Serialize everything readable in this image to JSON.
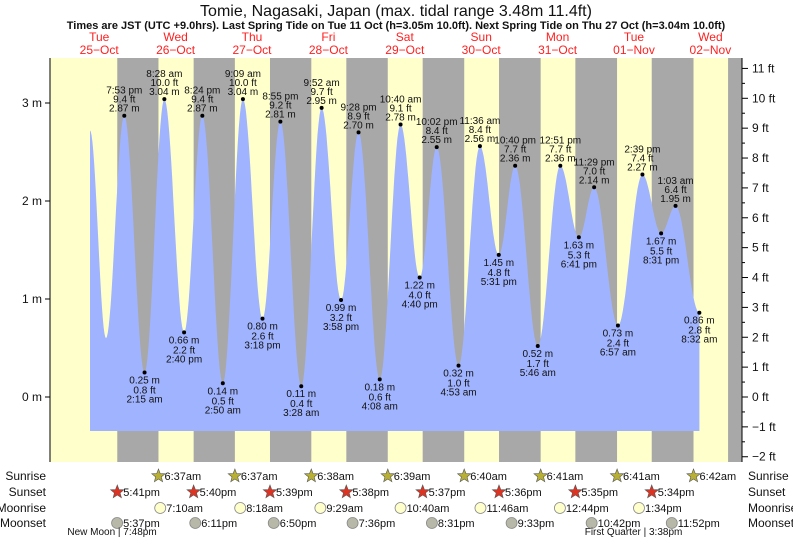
{
  "chart_data": {
    "type": "area",
    "title": "Tomie, Nagasaki, Japan (max. tidal range 3.48m 11.4ft)",
    "subtitle": "Times are JST (UTC +9.0hrs). Last Spring Tide on Tue 11 Oct (h=3.05m 10.0ft). Next Spring Tide on Thu 27 Oct (h=3.04m 10.0ft)",
    "days": [
      {
        "dow": "Tue",
        "date": "25−Oct"
      },
      {
        "dow": "Wed",
        "date": "26−Oct"
      },
      {
        "dow": "Thu",
        "date": "27−Oct"
      },
      {
        "dow": "Fri",
        "date": "28−Oct"
      },
      {
        "dow": "Sat",
        "date": "29−Oct"
      },
      {
        "dow": "Sun",
        "date": "30−Oct"
      },
      {
        "dow": "Mon",
        "date": "31−Oct"
      },
      {
        "dow": "Tue",
        "date": "01−Nov"
      },
      {
        "dow": "Wed",
        "date": "02−Nov"
      }
    ],
    "y_left": {
      "unit": "m",
      "ticks": [
        {
          "v": 3,
          "label": "3 m"
        },
        {
          "v": 2,
          "label": "2 m"
        },
        {
          "v": 1,
          "label": "1 m"
        },
        {
          "v": 0,
          "label": "0 m"
        }
      ]
    },
    "y_right": {
      "unit": "ft",
      "ticks": [
        {
          "v": 11,
          "label": "11 ft"
        },
        {
          "v": 10,
          "label": "10 ft"
        },
        {
          "v": 9,
          "label": "9 ft"
        },
        {
          "v": 8,
          "label": "8 ft"
        },
        {
          "v": 7,
          "label": "7 ft"
        },
        {
          "v": 6,
          "label": "6 ft"
        },
        {
          "v": 5,
          "label": "5 ft"
        },
        {
          "v": 4,
          "label": "4 ft"
        },
        {
          "v": 3,
          "label": "3 ft"
        },
        {
          "v": 2,
          "label": "2 ft"
        },
        {
          "v": 1,
          "label": "1 ft"
        },
        {
          "v": 0,
          "label": "0 ft"
        },
        {
          "v": -1,
          "label": "−1 ft"
        },
        {
          "v": -2,
          "label": "−2 ft"
        }
      ]
    },
    "series_start": {
      "day": 0,
      "hour": 9.1,
      "m": 2.72
    },
    "extremes": [
      {
        "day": 0,
        "hour": 14.13,
        "type": "low",
        "m": 0.6,
        "labeled": false
      },
      {
        "day": 0,
        "hour": 19.88,
        "type": "high",
        "time": "7:53 pm",
        "m": "2.87 m",
        "ft": "9.4 ft",
        "h": 2.87
      },
      {
        "day": 1,
        "hour": 2.25,
        "type": "low",
        "time": "2:15 am",
        "m": "0.25 m",
        "ft": "0.8 ft",
        "h": 0.25
      },
      {
        "day": 1,
        "hour": 8.47,
        "type": "high",
        "time": "8:28 am",
        "m": "3.04 m",
        "ft": "10.0 ft",
        "h": 3.04
      },
      {
        "day": 1,
        "hour": 14.67,
        "type": "low",
        "time": "2:40 pm",
        "m": "0.66 m",
        "ft": "2.2 ft",
        "h": 0.66
      },
      {
        "day": 1,
        "hour": 20.4,
        "type": "high",
        "time": "8:24 pm",
        "m": "2.87 m",
        "ft": "9.4 ft",
        "h": 2.87
      },
      {
        "day": 2,
        "hour": 2.83,
        "type": "low",
        "time": "2:50 am",
        "m": "0.14 m",
        "ft": "0.5 ft",
        "h": 0.14
      },
      {
        "day": 2,
        "hour": 9.15,
        "type": "high",
        "time": "9:09 am",
        "m": "3.04 m",
        "ft": "10.0 ft",
        "h": 3.04
      },
      {
        "day": 2,
        "hour": 15.3,
        "type": "low",
        "time": "3:18 pm",
        "m": "0.80 m",
        "ft": "2.6 ft",
        "h": 0.8
      },
      {
        "day": 2,
        "hour": 20.92,
        "type": "high",
        "time": "8:55 pm",
        "m": "2.81 m",
        "ft": "9.2 ft",
        "h": 2.81
      },
      {
        "day": 3,
        "hour": 3.47,
        "type": "low",
        "time": "3:28 am",
        "m": "0.11 m",
        "ft": "0.4 ft",
        "h": 0.11
      },
      {
        "day": 3,
        "hour": 9.87,
        "type": "high",
        "time": "9:52 am",
        "m": "2.95 m",
        "ft": "9.7 ft",
        "h": 2.95
      },
      {
        "day": 3,
        "hour": 15.97,
        "type": "low",
        "time": "3:58 pm",
        "m": "0.99 m",
        "ft": "3.2 ft",
        "h": 0.99
      },
      {
        "day": 3,
        "hour": 21.47,
        "type": "high",
        "time": "9:28 pm",
        "m": "2.70 m",
        "ft": "8.9 ft",
        "h": 2.7
      },
      {
        "day": 4,
        "hour": 4.13,
        "type": "low",
        "time": "4:08 am",
        "m": "0.18 m",
        "ft": "0.6 ft",
        "h": 0.18
      },
      {
        "day": 4,
        "hour": 10.67,
        "type": "high",
        "time": "10:40 am",
        "m": "2.78 m",
        "ft": "9.1 ft",
        "h": 2.78
      },
      {
        "day": 4,
        "hour": 16.67,
        "type": "low",
        "time": "4:40 pm",
        "m": "1.22 m",
        "ft": "4.0 ft",
        "h": 1.22
      },
      {
        "day": 4,
        "hour": 22.03,
        "type": "high",
        "time": "10:02 pm",
        "m": "2.55 m",
        "ft": "8.4 ft",
        "h": 2.55
      },
      {
        "day": 5,
        "hour": 4.88,
        "type": "low",
        "time": "4:53 am",
        "m": "0.32 m",
        "ft": "1.0 ft",
        "h": 0.32
      },
      {
        "day": 5,
        "hour": 11.6,
        "type": "high",
        "time": "11:36 am",
        "m": "2.56 m",
        "ft": "8.4 ft",
        "h": 2.56
      },
      {
        "day": 5,
        "hour": 17.52,
        "type": "low",
        "time": "5:31 pm",
        "m": "1.45 m",
        "ft": "4.8 ft",
        "h": 1.45
      },
      {
        "day": 5,
        "hour": 22.67,
        "type": "high",
        "time": "10:40 pm",
        "m": "2.36 m",
        "ft": "7.7 ft",
        "h": 2.36
      },
      {
        "day": 6,
        "hour": 5.77,
        "type": "low",
        "time": "5:46 am",
        "m": "0.52 m",
        "ft": "1.7 ft",
        "h": 0.52
      },
      {
        "day": 6,
        "hour": 12.85,
        "type": "high",
        "time": "12:51 pm",
        "m": "2.36 m",
        "ft": "7.7 ft",
        "h": 2.36
      },
      {
        "day": 6,
        "hour": 18.68,
        "type": "low",
        "time": "6:41 pm",
        "m": "1.63 m",
        "ft": "5.3 ft",
        "h": 1.63
      },
      {
        "day": 6,
        "hour": 23.48,
        "type": "high",
        "time": "11:29 pm",
        "m": "2.14 m",
        "ft": "7.0 ft",
        "h": 2.14
      },
      {
        "day": 7,
        "hour": 6.95,
        "type": "low",
        "time": "6:57 am",
        "m": "0.73 m",
        "ft": "2.4 ft",
        "h": 0.73
      },
      {
        "day": 7,
        "hour": 14.65,
        "type": "high",
        "time": "2:39 pm",
        "m": "2.27 m",
        "ft": "7.4 ft",
        "h": 2.27
      },
      {
        "day": 7,
        "hour": 20.52,
        "type": "low",
        "time": "8:31 pm",
        "m": "1.67 m",
        "ft": "5.5 ft",
        "h": 1.67
      },
      {
        "day": 8,
        "hour": 1.05,
        "type": "high",
        "time": "1:03 am",
        "m": "1.95 m",
        "ft": "6.4 ft",
        "h": 1.95
      },
      {
        "day": 8,
        "hour": 8.53,
        "type": "low",
        "time": "8:32 am",
        "m": "0.86 m",
        "ft": "2.8 ft",
        "h": 0.86
      }
    ],
    "rows": {
      "sunrise": {
        "label": "Sunrise",
        "events": [
          {
            "day": 1,
            "hour": 6.62,
            "text": "6:37am"
          },
          {
            "day": 2,
            "hour": 6.62,
            "text": "6:37am"
          },
          {
            "day": 3,
            "hour": 6.63,
            "text": "6:38am"
          },
          {
            "day": 4,
            "hour": 6.65,
            "text": "6:39am"
          },
          {
            "day": 5,
            "hour": 6.67,
            "text": "6:40am"
          },
          {
            "day": 6,
            "hour": 6.68,
            "text": "6:41am"
          },
          {
            "day": 7,
            "hour": 6.68,
            "text": "6:41am"
          },
          {
            "day": 8,
            "hour": 6.7,
            "text": "6:42am"
          }
        ]
      },
      "sunset": {
        "label": "Sunset",
        "events": [
          {
            "day": 0,
            "hour": 17.68,
            "text": "5:41pm"
          },
          {
            "day": 1,
            "hour": 17.67,
            "text": "5:40pm"
          },
          {
            "day": 2,
            "hour": 17.65,
            "text": "5:39pm"
          },
          {
            "day": 3,
            "hour": 17.63,
            "text": "5:38pm"
          },
          {
            "day": 4,
            "hour": 17.62,
            "text": "5:37pm"
          },
          {
            "day": 5,
            "hour": 17.6,
            "text": "5:36pm"
          },
          {
            "day": 6,
            "hour": 17.58,
            "text": "5:35pm"
          },
          {
            "day": 7,
            "hour": 17.57,
            "text": "5:34pm"
          }
        ]
      },
      "moonrise": {
        "label": "Moonrise",
        "events": [
          {
            "day": 1,
            "hour": 7.17,
            "text": "7:10am"
          },
          {
            "day": 2,
            "hour": 8.3,
            "text": "8:18am"
          },
          {
            "day": 3,
            "hour": 9.48,
            "text": "9:29am"
          },
          {
            "day": 4,
            "hour": 10.67,
            "text": "10:40am"
          },
          {
            "day": 5,
            "hour": 11.77,
            "text": "11:46am"
          },
          {
            "day": 6,
            "hour": 12.73,
            "text": "12:44pm"
          },
          {
            "day": 7,
            "hour": 13.57,
            "text": "1:34pm"
          }
        ]
      },
      "moonset": {
        "label": "Moonset",
        "events": [
          {
            "day": 0,
            "hour": 17.62,
            "text": "5:37pm"
          },
          {
            "day": 1,
            "hour": 18.18,
            "text": "6:11pm"
          },
          {
            "day": 2,
            "hour": 18.83,
            "text": "6:50pm"
          },
          {
            "day": 3,
            "hour": 19.6,
            "text": "7:36pm"
          },
          {
            "day": 4,
            "hour": 20.52,
            "text": "8:31pm"
          },
          {
            "day": 5,
            "hour": 21.55,
            "text": "9:33pm"
          },
          {
            "day": 6,
            "hour": 22.7,
            "text": "10:42pm"
          },
          {
            "day": 7,
            "hour": 23.87,
            "text": "11:52pm"
          }
        ]
      }
    },
    "moon_phases": [
      {
        "day": 0,
        "hour": 19.8,
        "text": "New Moon | 7:48pm"
      },
      {
        "day": 7,
        "hour": 15.63,
        "text": "First Quarter | 3:38pm"
      }
    ],
    "colors": {
      "day": "#ffffcc",
      "night": "#a8a8a8",
      "water": "#a0b3fe",
      "day_label": "#ff2020",
      "sunrise": "#b8b034",
      "sunset": "#dd3322",
      "moonrise": "#ffffcc",
      "moonset": "#b8b8a8"
    }
  }
}
